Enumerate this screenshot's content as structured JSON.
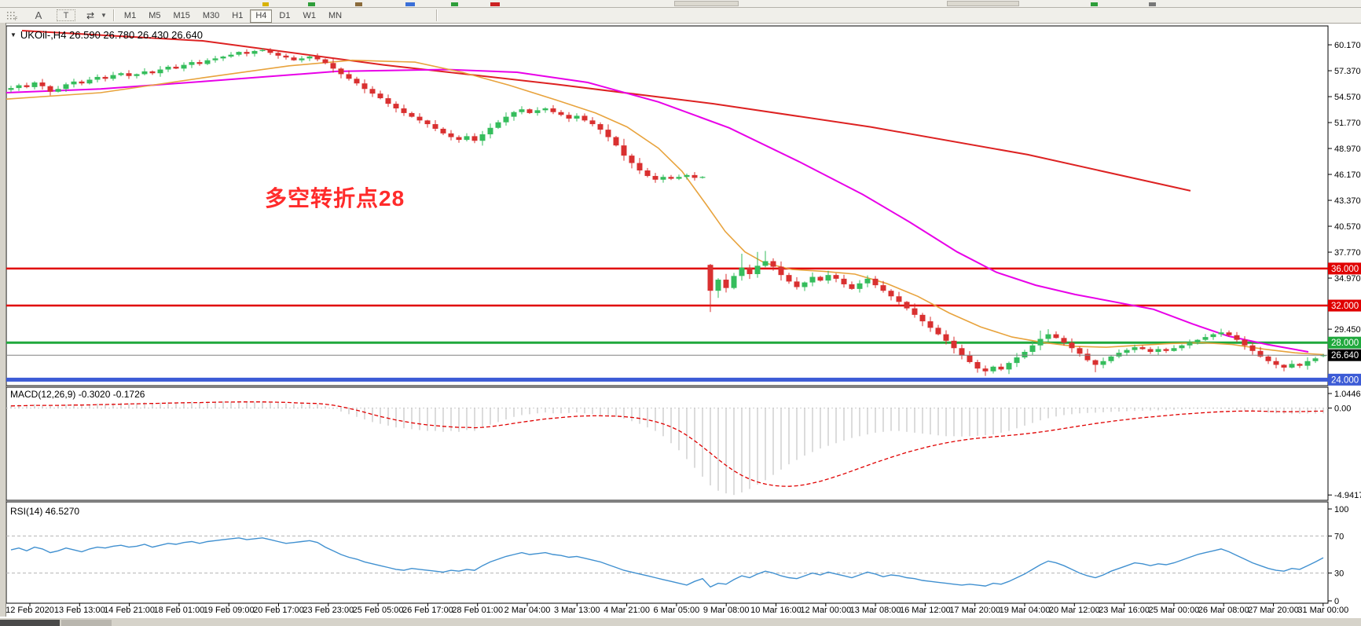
{
  "toolbar": {
    "tools": [
      {
        "id": "crosshair-grid",
        "label": "F"
      },
      {
        "id": "text-label",
        "label": "A"
      },
      {
        "id": "text-box",
        "label": "T"
      },
      {
        "id": "cycle-lines",
        "label": "⇄"
      }
    ],
    "timeframes": [
      "M1",
      "M5",
      "M15",
      "M30",
      "H1",
      "H4",
      "D1",
      "W1",
      "MN"
    ],
    "active_timeframe": "H4"
  },
  "chart": {
    "title": "UKOil-,H4  26.590 26.780 26.430 26.640",
    "annotation": {
      "text": "多空转折点28",
      "color": "#ff2b2b"
    }
  },
  "indicators": {
    "macd": {
      "label": "MACD(12,26,9) -0.3020 -0.1726",
      "values_line1": "-0.3020",
      "values_line2": "-0.1726",
      "scale": [
        {
          "label": "1.0446",
          "value": 1.0446
        },
        {
          "label": "0.00",
          "value": 0
        },
        {
          "label": "-4.9417",
          "value": -4.9417
        }
      ],
      "histogram": [
        0.15,
        0.2,
        0.18,
        0.22,
        0.17,
        0.12,
        0.15,
        0.2,
        0.22,
        0.18,
        0.2,
        0.25,
        0.22,
        0.27,
        0.3,
        0.26,
        0.28,
        0.32,
        0.28,
        0.3,
        0.33,
        0.3,
        0.34,
        0.36,
        0.32,
        0.35,
        0.37,
        0.38,
        0.36,
        0.38,
        0.35,
        0.36,
        0.37,
        0.34,
        0.3,
        0.26,
        0.22,
        0.24,
        0.26,
        0.22,
        0.1,
        -0.05,
        -0.2,
        -0.35,
        -0.5,
        -0.65,
        -0.8,
        -0.9,
        -1.0,
        -1.1,
        -1.15,
        -1.2,
        -1.25,
        -1.3,
        -1.3,
        -1.35,
        -1.3,
        -1.35,
        -1.25,
        -1.3,
        -1.1,
        -0.95,
        -0.8,
        -0.65,
        -0.5,
        -0.4,
        -0.35,
        -0.3,
        -0.25,
        -0.3,
        -0.3,
        -0.28,
        -0.25,
        -0.3,
        -0.35,
        -0.4,
        -0.45,
        -0.5,
        -0.6,
        -0.75,
        -0.9,
        -1.1,
        -1.3,
        -1.6,
        -2.0,
        -2.4,
        -2.9,
        -3.4,
        -3.9,
        -4.4,
        -4.7,
        -4.85,
        -4.94,
        -4.8,
        -4.6,
        -4.35,
        -4.1,
        -3.8,
        -3.5,
        -3.2,
        -2.95,
        -2.7,
        -2.5,
        -2.3,
        -2.15,
        -2.0,
        -1.85,
        -1.7,
        -1.6,
        -1.5,
        -1.4,
        -1.35,
        -1.3,
        -1.3,
        -1.35,
        -1.4,
        -1.45,
        -1.5,
        -1.55,
        -1.6,
        -1.6,
        -1.62,
        -1.6,
        -1.58,
        -1.55,
        -1.5,
        -1.4,
        -1.3,
        -1.15,
        -1.0,
        -0.85,
        -0.7,
        -0.58,
        -0.48,
        -0.4,
        -0.35,
        -0.3,
        -0.28,
        -0.26,
        -0.24,
        -0.22,
        -0.2,
        -0.18,
        -0.16,
        -0.15,
        -0.14,
        -0.13,
        -0.12,
        -0.1,
        -0.08,
        -0.06,
        -0.05,
        -0.04,
        -0.04,
        -0.05,
        -0.07,
        -0.1,
        -0.14,
        -0.18,
        -0.22,
        -0.26,
        -0.3,
        -0.33,
        -0.34,
        -0.33,
        -0.32,
        -0.31,
        -0.302
      ],
      "signal": [
        0.12,
        0.13,
        0.14,
        0.15,
        0.15,
        0.15,
        0.15,
        0.16,
        0.17,
        0.17,
        0.18,
        0.19,
        0.2,
        0.21,
        0.22,
        0.23,
        0.24,
        0.25,
        0.26,
        0.27,
        0.28,
        0.29,
        0.3,
        0.31,
        0.31,
        0.32,
        0.33,
        0.34,
        0.34,
        0.35,
        0.35,
        0.35,
        0.35,
        0.34,
        0.33,
        0.32,
        0.3,
        0.28,
        0.27,
        0.26,
        0.22,
        0.16,
        0.08,
        -0.02,
        -0.12,
        -0.24,
        -0.36,
        -0.48,
        -0.58,
        -0.68,
        -0.76,
        -0.84,
        -0.9,
        -0.96,
        -1.0,
        -1.04,
        -1.07,
        -1.1,
        -1.1,
        -1.12,
        -1.1,
        -1.06,
        -1.0,
        -0.94,
        -0.87,
        -0.8,
        -0.74,
        -0.68,
        -0.62,
        -0.58,
        -0.54,
        -0.5,
        -0.47,
        -0.45,
        -0.44,
        -0.44,
        -0.45,
        -0.46,
        -0.49,
        -0.53,
        -0.59,
        -0.67,
        -0.77,
        -0.9,
        -1.07,
        -1.28,
        -1.55,
        -1.86,
        -2.2,
        -2.56,
        -2.92,
        -3.26,
        -3.57,
        -3.83,
        -4.04,
        -4.2,
        -4.32,
        -4.4,
        -4.44,
        -4.45,
        -4.42,
        -4.36,
        -4.27,
        -4.16,
        -4.03,
        -3.89,
        -3.74,
        -3.58,
        -3.42,
        -3.26,
        -3.1,
        -2.95,
        -2.8,
        -2.66,
        -2.52,
        -2.4,
        -2.28,
        -2.17,
        -2.07,
        -1.98,
        -1.9,
        -1.83,
        -1.77,
        -1.72,
        -1.68,
        -1.64,
        -1.6,
        -1.56,
        -1.52,
        -1.47,
        -1.42,
        -1.36,
        -1.3,
        -1.23,
        -1.16,
        -1.09,
        -1.02,
        -0.95,
        -0.88,
        -0.82,
        -0.76,
        -0.7,
        -0.65,
        -0.6,
        -0.55,
        -0.51,
        -0.47,
        -0.43,
        -0.39,
        -0.35,
        -0.32,
        -0.29,
        -0.26,
        -0.23,
        -0.21,
        -0.19,
        -0.18,
        -0.17,
        -0.17,
        -0.18,
        -0.19,
        -0.2,
        -0.21,
        -0.21,
        -0.2,
        -0.19,
        -0.18,
        -0.1726
      ]
    },
    "rsi": {
      "label": "RSI(14) 46.5270",
      "current": 46.527,
      "scale": [
        {
          "label": "100",
          "value": 100
        },
        {
          "label": "70",
          "value": 70
        },
        {
          "label": "30",
          "value": 30
        },
        {
          "label": "0",
          "value": 0
        }
      ],
      "dashed_levels": [
        70,
        30
      ],
      "values": [
        55,
        57,
        54,
        58,
        56,
        52,
        54,
        57,
        55,
        53,
        56,
        58,
        57,
        59,
        60,
        58,
        59,
        61,
        58,
        60,
        62,
        61,
        63,
        64,
        62,
        64,
        65,
        66,
        67,
        68,
        66,
        67,
        68,
        66,
        64,
        62,
        63,
        64,
        65,
        63,
        58,
        54,
        50,
        47,
        45,
        42,
        40,
        38,
        36,
        34,
        33,
        35,
        34,
        33,
        32,
        31,
        33,
        32,
        34,
        33,
        38,
        42,
        45,
        48,
        50,
        52,
        50,
        51,
        52,
        50,
        49,
        47,
        48,
        46,
        44,
        42,
        39,
        36,
        33,
        31,
        29,
        27,
        25,
        23,
        21,
        19,
        17,
        21,
        24,
        15,
        19,
        18,
        23,
        27,
        25,
        29,
        32,
        30,
        27,
        25,
        24,
        27,
        30,
        28,
        31,
        29,
        27,
        25,
        28,
        31,
        29,
        26,
        28,
        27,
        25,
        24,
        22,
        21,
        20,
        19,
        18,
        17,
        18,
        17,
        16,
        19,
        18,
        21,
        25,
        29,
        34,
        39,
        43,
        41,
        38,
        34,
        30,
        27,
        25,
        28,
        32,
        35,
        38,
        41,
        40,
        38,
        40,
        39,
        41,
        44,
        47,
        50,
        52,
        54,
        56,
        53,
        49,
        45,
        41,
        38,
        35,
        33,
        32,
        35,
        34,
        38,
        42,
        46.5
      ]
    }
  },
  "chart_data": {
    "type": "candlestick",
    "symbol": "UKOil-",
    "timeframe": "H4",
    "ohlc_display": {
      "open": "26.590",
      "high": "26.780",
      "low": "26.430",
      "close": "26.640"
    },
    "colors": {
      "bull": "#35bd5c",
      "bear": "#d93030",
      "ma_red": "#dd2222",
      "ma_magenta": "#e800e8",
      "ma_orange": "#e8a33d",
      "level_red": "#e00000",
      "level_green": "#1fa83c",
      "level_blue": "#3c5bd6",
      "current_line": "#808080",
      "current_badge": "#000000",
      "macd_hist": "#b8b8b8",
      "macd_signal": "#e00000",
      "rsi_line": "#4090d0"
    },
    "price_axis_ticks": [
      {
        "label": "60.170",
        "value": 60.17
      },
      {
        "label": "57.370",
        "value": 57.37
      },
      {
        "label": "54.570",
        "value": 54.57
      },
      {
        "label": "51.770",
        "value": 51.77
      },
      {
        "label": "48.970",
        "value": 48.97
      },
      {
        "label": "46.170",
        "value": 46.17
      },
      {
        "label": "43.370",
        "value": 43.37
      },
      {
        "label": "40.570",
        "value": 40.57
      },
      {
        "label": "37.770",
        "value": 37.77
      },
      {
        "label": "34.970",
        "value": 34.97
      },
      {
        "label": "29.450",
        "value": 29.45
      }
    ],
    "levels": [
      {
        "label": "36.000",
        "value": 36,
        "color": "#e00000",
        "width": 2.5
      },
      {
        "label": "32.000",
        "value": 32,
        "color": "#e00000",
        "width": 2.5
      },
      {
        "label": "28.000",
        "value": 28,
        "color": "#1fa83c",
        "width": 3
      },
      {
        "label": "24.000",
        "value": 24,
        "color": "#3c5bd6",
        "width": 5
      }
    ],
    "current_price": {
      "label": "26.640",
      "value": 26.64
    },
    "time_axis": [
      "12 Feb 2020",
      "13 Feb 13:00",
      "14 Feb 21:00",
      "18 Feb 01:00",
      "19 Feb 09:00",
      "20 Feb 17:00",
      "23 Feb 23:00",
      "25 Feb 05:00",
      "26 Feb 17:00",
      "28 Feb 01:00",
      "2 Mar 04:00",
      "3 Mar 13:00",
      "4 Mar 21:00",
      "6 Mar 05:00",
      "9 Mar 08:00",
      "10 Mar 16:00",
      "12 Mar 00:00",
      "13 Mar 08:00",
      "16 Mar 12:00",
      "17 Mar 20:00",
      "19 Mar 04:00",
      "20 Mar 12:00",
      "23 Mar 16:00",
      "25 Mar 00:00",
      "26 Mar 08:00",
      "27 Mar 20:00",
      "31 Mar 00:00"
    ],
    "candles": {
      "first_open": 55.3,
      "closes": [
        55.5,
        55.8,
        55.6,
        56.1,
        55.7,
        55.1,
        55.4,
        55.9,
        56.2,
        56.0,
        56.4,
        56.7,
        56.5,
        56.9,
        57.1,
        56.8,
        57.0,
        57.3,
        57.1,
        57.5,
        57.8,
        57.6,
        58.0,
        58.3,
        58.1,
        58.5,
        58.7,
        58.9,
        59.1,
        59.4,
        59.2,
        59.5,
        59.6,
        59.3,
        59.0,
        58.8,
        58.5,
        58.7,
        58.9,
        58.6,
        58.2,
        57.6,
        57.0,
        56.5,
        56.0,
        55.4,
        54.9,
        54.4,
        53.8,
        53.3,
        52.8,
        52.4,
        52.0,
        51.6,
        51.1,
        50.6,
        50.2,
        49.9,
        50.3,
        49.8,
        50.5,
        51.2,
        51.8,
        52.4,
        52.9,
        53.2,
        52.8,
        53.1,
        53.3,
        52.9,
        52.6,
        52.2,
        52.5,
        52.0,
        51.6,
        51.0,
        50.2,
        49.3,
        48.2,
        47.4,
        46.6,
        46.0,
        45.6,
        45.9,
        45.7,
        45.9,
        46.1,
        45.8,
        45.9,
        33.6,
        34.8,
        33.9,
        35.2,
        36.1,
        35.4,
        36.3,
        36.8,
        36.2,
        35.3,
        34.6,
        34.0,
        34.5,
        35.1,
        34.7,
        35.3,
        34.9,
        34.3,
        33.8,
        34.4,
        34.9,
        34.2,
        33.6,
        33.0,
        32.4,
        31.7,
        31.0,
        30.3,
        29.6,
        28.9,
        28.2,
        27.4,
        26.6,
        25.9,
        25.2,
        24.9,
        25.4,
        25.1,
        25.8,
        26.4,
        27.0,
        27.7,
        28.4,
        28.9,
        28.5,
        28.0,
        27.4,
        26.8,
        26.1,
        25.6,
        26.0,
        26.5,
        26.9,
        27.2,
        27.5,
        27.3,
        27.0,
        27.3,
        27.1,
        27.4,
        27.7,
        28.0,
        28.3,
        28.6,
        28.9,
        29.1,
        28.8,
        28.3,
        27.7,
        27.1,
        26.5,
        26.0,
        25.6,
        25.3,
        25.7,
        25.5,
        26.0,
        26.3,
        26.64
      ],
      "open_overrides": {
        "89": 36.4,
        "167": 26.59
      },
      "wick_overrides": {
        "89": {
          "high": 36.5,
          "low": 31.3
        },
        "93": {
          "high": 37.6
        },
        "95": {
          "high": 37.8
        },
        "96": {
          "high": 37.9
        },
        "124": {
          "low": 24.4
        },
        "131": {
          "high": 29.3
        },
        "132": {
          "high": 29.45
        },
        "138": {
          "low": 24.8
        },
        "154": {
          "high": 29.5
        },
        "162": {
          "low": 24.9
        },
        "167": {
          "high": 26.78,
          "low": 26.43
        }
      }
    },
    "moving_averages": {
      "red": [
        [
          20,
          61.7
        ],
        [
          250,
          60.6
        ],
        [
          480,
          58.0
        ],
        [
          700,
          55.9
        ],
        [
          900,
          53.8
        ],
        [
          1100,
          51.3
        ],
        [
          1300,
          48.3
        ],
        [
          1507,
          44.4
        ]
      ],
      "magenta": [
        [
          0,
          55.0
        ],
        [
          120,
          55.4
        ],
        [
          250,
          56.2
        ],
        [
          420,
          57.3
        ],
        [
          560,
          57.5
        ],
        [
          650,
          57.2
        ],
        [
          740,
          56.1
        ],
        [
          830,
          54.0
        ],
        [
          920,
          51.2
        ],
        [
          1010,
          47.5
        ],
        [
          1090,
          44.0
        ],
        [
          1150,
          41.0
        ],
        [
          1210,
          37.8
        ],
        [
          1260,
          35.6
        ],
        [
          1310,
          34.2
        ],
        [
          1360,
          33.2
        ],
        [
          1410,
          32.4
        ],
        [
          1460,
          31.6
        ],
        [
          1510,
          30.0
        ],
        [
          1555,
          28.7
        ],
        [
          1605,
          27.8
        ],
        [
          1657,
          27.0
        ]
      ],
      "orange": [
        [
          0,
          54.3
        ],
        [
          120,
          55.0
        ],
        [
          250,
          56.6
        ],
        [
          360,
          57.9
        ],
        [
          440,
          58.5
        ],
        [
          520,
          58.3
        ],
        [
          580,
          57.2
        ],
        [
          640,
          55.8
        ],
        [
          700,
          54.2
        ],
        [
          750,
          52.8
        ],
        [
          790,
          51.3
        ],
        [
          830,
          49.0
        ],
        [
          860,
          46.5
        ],
        [
          890,
          43.0
        ],
        [
          915,
          40.0
        ],
        [
          940,
          37.8
        ],
        [
          965,
          36.6
        ],
        [
          1000,
          35.9
        ],
        [
          1040,
          35.7
        ],
        [
          1080,
          35.4
        ],
        [
          1120,
          34.4
        ],
        [
          1160,
          33.0
        ],
        [
          1200,
          31.2
        ],
        [
          1240,
          29.7
        ],
        [
          1280,
          28.6
        ],
        [
          1320,
          28.0
        ],
        [
          1360,
          27.6
        ],
        [
          1400,
          27.5
        ],
        [
          1440,
          27.7
        ],
        [
          1480,
          27.9
        ],
        [
          1520,
          28.0
        ],
        [
          1560,
          27.8
        ],
        [
          1600,
          27.3
        ],
        [
          1640,
          26.9
        ],
        [
          1677,
          26.7
        ]
      ]
    }
  }
}
